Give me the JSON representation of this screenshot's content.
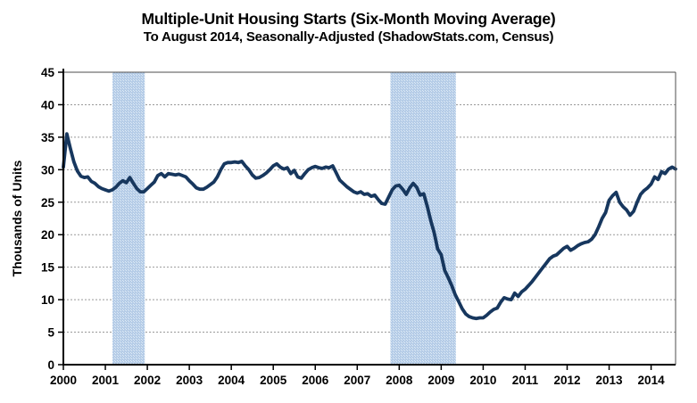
{
  "chart_data": {
    "type": "line",
    "title": "Multiple-Unit Housing Starts (Six-Month Moving Average)",
    "subtitle": "To August 2014, Seasonally-Adjusted (ShadowStats.com, Census)",
    "ylabel": "Thousands of Units",
    "xlabel": "",
    "ylim": [
      0,
      45
    ],
    "y_ticks": [
      0,
      5,
      10,
      15,
      20,
      25,
      30,
      35,
      40,
      45
    ],
    "x_ticks": [
      2000,
      2001,
      2002,
      2003,
      2004,
      2005,
      2006,
      2007,
      2008,
      2009,
      2010,
      2011,
      2012,
      2013,
      2014
    ],
    "x_start": 2000.0,
    "x_end": 2014.583,
    "frequency": "monthly",
    "grid": "horizontal, dashed",
    "legend": "none",
    "recession_bands": [
      {
        "start": 2001.17,
        "end": 2001.94
      },
      {
        "start": 2007.79,
        "end": 2009.35
      }
    ],
    "series": [
      {
        "name": "Multiple-unit housing starts, six-month moving average (thousands of units)",
        "start": "2000-01",
        "end": "2014-08",
        "values": [
          30.4,
          35.5,
          33.3,
          31.2,
          29.8,
          29.0,
          28.8,
          28.9,
          28.2,
          27.9,
          27.4,
          27.1,
          26.9,
          26.7,
          26.9,
          27.3,
          27.9,
          28.3,
          28.0,
          28.8,
          27.9,
          27.1,
          26.6,
          26.6,
          27.1,
          27.6,
          28.1,
          29.1,
          29.4,
          28.9,
          29.4,
          29.3,
          29.2,
          29.3,
          29.1,
          28.9,
          28.3,
          27.8,
          27.2,
          27.0,
          27.0,
          27.3,
          27.7,
          28.1,
          28.9,
          30.0,
          30.9,
          31.1,
          31.1,
          31.2,
          31.1,
          31.3,
          30.6,
          30.0,
          29.2,
          28.7,
          28.8,
          29.1,
          29.5,
          30.0,
          30.6,
          30.9,
          30.4,
          30.1,
          30.3,
          29.4,
          29.9,
          28.9,
          28.7,
          29.4,
          30.0,
          30.3,
          30.5,
          30.3,
          30.2,
          30.4,
          30.3,
          30.6,
          29.5,
          28.4,
          27.9,
          27.4,
          27.0,
          26.6,
          26.4,
          26.6,
          26.2,
          26.3,
          25.9,
          26.1,
          25.4,
          24.8,
          24.7,
          25.8,
          26.9,
          27.5,
          27.6,
          27.0,
          26.2,
          27.2,
          27.9,
          27.3,
          26.1,
          26.3,
          24.4,
          22.2,
          20.3,
          17.8,
          16.9,
          14.5,
          13.4,
          12.2,
          10.8,
          9.7,
          8.6,
          7.8,
          7.4,
          7.2,
          7.1,
          7.2,
          7.2,
          7.6,
          8.1,
          8.5,
          8.7,
          9.6,
          10.3,
          10.1,
          10.0,
          11.0,
          10.5,
          11.2,
          11.6,
          12.2,
          12.8,
          13.5,
          14.2,
          14.9,
          15.6,
          16.3,
          16.7,
          16.9,
          17.4,
          17.9,
          18.2,
          17.6,
          17.9,
          18.3,
          18.6,
          18.8,
          18.9,
          19.3,
          20.0,
          21.2,
          22.5,
          23.4,
          25.3,
          26.0,
          26.5,
          25.0,
          24.3,
          23.8,
          23.0,
          23.6,
          25.0,
          26.2,
          26.8,
          27.2,
          27.8,
          28.9,
          28.5,
          29.7,
          29.4,
          30.1,
          30.4,
          30.1
        ]
      }
    ],
    "colors": {
      "line": "#17375e",
      "recession_band": "#b5cce7",
      "recession_band_dot": "#ddeaf6",
      "grid": "#999999",
      "axis": "#000000",
      "frame": "#4d4d4d",
      "text": "#000000",
      "background": "#ffffff"
    }
  }
}
